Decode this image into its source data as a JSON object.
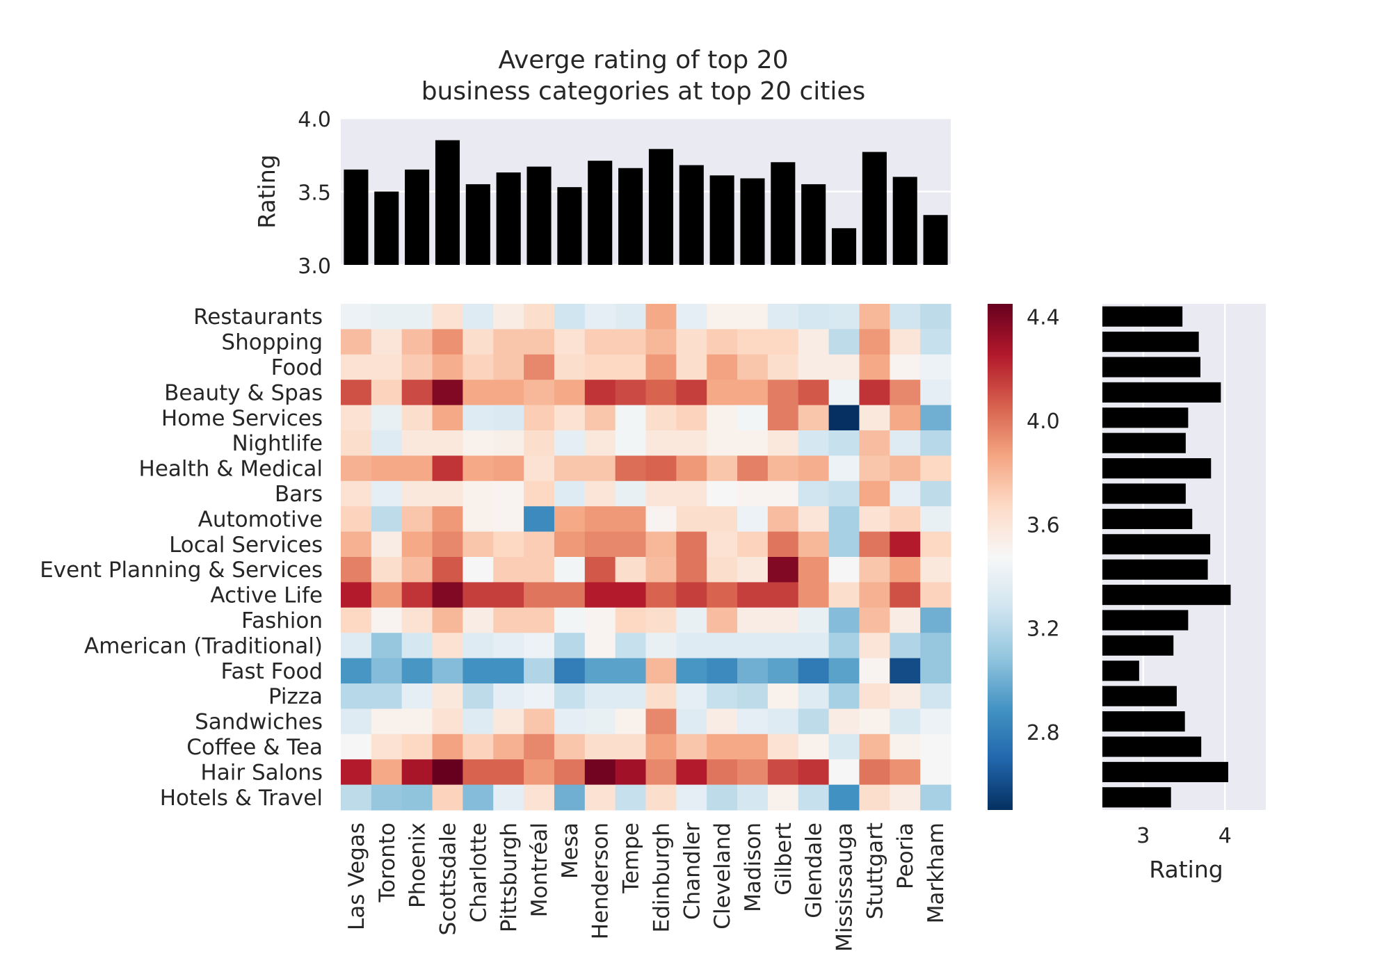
{
  "title_line1": "Averge rating of top 20",
  "title_line2": "business categories at top 20 cities",
  "chart_data": [
    {
      "type": "bar",
      "name": "top-bar",
      "categories": [
        "Las Vegas",
        "Toronto",
        "Phoenix",
        "Scottsdale",
        "Charlotte",
        "Pittsburgh",
        "Montréal",
        "Mesa",
        "Henderson",
        "Tempe",
        "Edinburgh",
        "Chandler",
        "Cleveland",
        "Madison",
        "Gilbert",
        "Glendale",
        "Mississauga",
        "Stuttgart",
        "Peoria",
        "Markham"
      ],
      "values": [
        3.65,
        3.5,
        3.65,
        3.85,
        3.55,
        3.63,
        3.67,
        3.53,
        3.71,
        3.66,
        3.79,
        3.68,
        3.61,
        3.59,
        3.7,
        3.55,
        3.25,
        3.77,
        3.6,
        3.34
      ],
      "ylabel": "Rating",
      "ylim": [
        3.0,
        4.0
      ],
      "yticks": [
        "3.0",
        "3.5",
        "4.0"
      ],
      "grid": true,
      "bar_color": "#000000",
      "background": "#eaeaf2"
    },
    {
      "type": "heatmap",
      "name": "ratings-heatmap",
      "rows": [
        "Restaurants",
        "Shopping",
        "Food",
        "Beauty & Spas",
        "Home Services",
        "Nightlife",
        "Health & Medical",
        "Bars",
        "Automotive",
        "Local Services",
        "Event Planning & Services",
        "Active Life",
        "Fashion",
        "American (Traditional)",
        "Fast Food",
        "Pizza",
        "Sandwiches",
        "Coffee & Tea",
        "Hair Salons",
        "Hotels & Travel"
      ],
      "columns": [
        "Las Vegas",
        "Toronto",
        "Phoenix",
        "Scottsdale",
        "Charlotte",
        "Pittsburgh",
        "Montréal",
        "Mesa",
        "Henderson",
        "Tempe",
        "Edinburgh",
        "Chandler",
        "Cleveland",
        "Madison",
        "Gilbert",
        "Glendale",
        "Mississauga",
        "Stuttgart",
        "Peoria",
        "Markham"
      ],
      "values": [
        [
          3.42,
          3.4,
          3.4,
          3.62,
          3.35,
          3.55,
          3.65,
          3.28,
          3.38,
          3.35,
          3.85,
          3.38,
          3.52,
          3.52,
          3.35,
          3.3,
          3.32,
          3.8,
          3.28,
          3.22
        ],
        [
          3.78,
          3.6,
          3.78,
          3.92,
          3.65,
          3.75,
          3.75,
          3.62,
          3.72,
          3.72,
          3.8,
          3.65,
          3.72,
          3.68,
          3.68,
          3.55,
          3.22,
          3.9,
          3.6,
          3.25
        ],
        [
          3.62,
          3.62,
          3.73,
          3.83,
          3.7,
          3.75,
          3.95,
          3.65,
          3.68,
          3.68,
          3.9,
          3.65,
          3.87,
          3.75,
          3.65,
          3.55,
          3.55,
          3.85,
          3.5,
          3.42
        ],
        [
          4.1,
          3.7,
          4.12,
          4.38,
          3.85,
          3.85,
          3.8,
          3.85,
          4.18,
          4.12,
          4.05,
          4.15,
          3.85,
          3.85,
          3.98,
          4.08,
          3.43,
          4.18,
          3.95,
          3.38
        ],
        [
          3.62,
          3.4,
          3.65,
          3.85,
          3.35,
          3.33,
          3.72,
          3.62,
          3.75,
          3.45,
          3.65,
          3.7,
          3.52,
          3.45,
          3.98,
          3.75,
          2.5,
          3.58,
          3.85,
          3.0
        ],
        [
          3.65,
          3.35,
          3.58,
          3.58,
          3.52,
          3.53,
          3.65,
          3.38,
          3.58,
          3.45,
          3.58,
          3.58,
          3.52,
          3.52,
          3.58,
          3.3,
          3.25,
          3.78,
          3.35,
          3.2
        ],
        [
          3.82,
          3.85,
          3.85,
          4.18,
          3.85,
          3.87,
          3.62,
          3.75,
          3.75,
          4.02,
          4.05,
          3.9,
          3.75,
          3.97,
          3.8,
          3.83,
          3.42,
          3.75,
          3.8,
          3.68
        ],
        [
          3.62,
          3.38,
          3.58,
          3.58,
          3.52,
          3.5,
          3.68,
          3.35,
          3.6,
          3.4,
          3.6,
          3.6,
          3.48,
          3.5,
          3.5,
          3.28,
          3.25,
          3.85,
          3.38,
          3.22
        ],
        [
          3.7,
          3.22,
          3.75,
          3.9,
          3.52,
          3.5,
          2.85,
          3.85,
          3.9,
          3.9,
          3.5,
          3.65,
          3.65,
          3.42,
          3.78,
          3.6,
          3.15,
          3.62,
          3.7,
          3.4
        ],
        [
          3.82,
          3.55,
          3.85,
          3.95,
          3.75,
          3.68,
          3.72,
          3.9,
          3.95,
          3.95,
          3.8,
          4.0,
          3.62,
          3.7,
          4.0,
          3.8,
          3.15,
          4.0,
          4.25,
          3.68
        ],
        [
          3.97,
          3.65,
          3.78,
          4.08,
          3.48,
          3.72,
          3.72,
          3.45,
          4.08,
          3.65,
          3.78,
          4.0,
          3.65,
          3.58,
          4.38,
          3.92,
          3.48,
          3.75,
          3.88,
          3.58
        ],
        [
          4.25,
          3.9,
          4.18,
          4.38,
          4.15,
          4.15,
          4.0,
          4.0,
          4.25,
          4.25,
          4.05,
          4.15,
          4.05,
          4.15,
          4.15,
          3.92,
          3.65,
          3.82,
          4.1,
          3.7
        ],
        [
          3.68,
          3.5,
          3.62,
          3.8,
          3.55,
          3.72,
          3.72,
          3.45,
          3.5,
          3.68,
          3.65,
          3.4,
          3.78,
          3.55,
          3.55,
          3.4,
          3.05,
          3.78,
          3.55,
          3.0
        ],
        [
          3.35,
          3.1,
          3.3,
          3.62,
          3.35,
          3.38,
          3.42,
          3.2,
          3.5,
          3.25,
          3.4,
          3.35,
          3.35,
          3.35,
          3.35,
          3.35,
          3.15,
          3.6,
          3.18,
          3.1
        ],
        [
          2.9,
          3.05,
          2.9,
          3.05,
          2.88,
          2.88,
          3.18,
          2.8,
          2.95,
          2.95,
          3.8,
          2.9,
          2.85,
          3.0,
          2.95,
          2.78,
          2.95,
          3.5,
          2.6,
          3.1
        ],
        [
          3.2,
          3.2,
          3.38,
          3.58,
          3.22,
          3.38,
          3.42,
          3.25,
          3.35,
          3.35,
          3.65,
          3.38,
          3.25,
          3.22,
          3.52,
          3.35,
          3.15,
          3.62,
          3.55,
          3.28
        ],
        [
          3.35,
          3.52,
          3.52,
          3.62,
          3.35,
          3.58,
          3.75,
          3.38,
          3.4,
          3.52,
          3.95,
          3.35,
          3.55,
          3.38,
          3.35,
          3.22,
          3.55,
          3.52,
          3.32,
          3.42
        ],
        [
          3.48,
          3.62,
          3.68,
          3.87,
          3.7,
          3.82,
          3.95,
          3.75,
          3.65,
          3.65,
          3.88,
          3.75,
          3.85,
          3.85,
          3.62,
          3.52,
          3.32,
          3.8,
          3.52,
          3.48
        ],
        [
          4.25,
          3.85,
          4.28,
          4.45,
          4.05,
          4.05,
          3.9,
          4.0,
          4.42,
          4.3,
          3.95,
          4.25,
          4.0,
          3.95,
          4.12,
          4.18,
          3.48,
          4.0,
          3.92,
          3.48
        ],
        [
          3.22,
          3.1,
          3.08,
          3.7,
          3.05,
          3.38,
          3.62,
          3.0,
          3.62,
          3.25,
          3.65,
          3.38,
          3.22,
          3.3,
          3.52,
          3.25,
          2.88,
          3.65,
          3.55,
          3.15
        ]
      ],
      "colormap": "RdBu_r",
      "vmin": 2.5,
      "vmax": 4.45
    },
    {
      "type": "colorbar",
      "name": "colorbar",
      "ticks": [
        "2.8",
        "3.2",
        "3.6",
        "4.0",
        "4.4"
      ],
      "tick_values": [
        2.8,
        3.2,
        3.6,
        4.0,
        4.4
      ],
      "vmin": 2.5,
      "vmax": 4.45
    },
    {
      "type": "bar",
      "name": "side-bar",
      "orientation": "horizontal",
      "categories": [
        "Restaurants",
        "Shopping",
        "Food",
        "Beauty & Spas",
        "Home Services",
        "Nightlife",
        "Health & Medical",
        "Bars",
        "Automotive",
        "Local Services",
        "Event Planning & Services",
        "Active Life",
        "Fashion",
        "American (Traditional)",
        "Fast Food",
        "Pizza",
        "Sandwiches",
        "Coffee & Tea",
        "Hair Salons",
        "Hotels & Travel"
      ],
      "values": [
        3.48,
        3.68,
        3.7,
        3.95,
        3.55,
        3.52,
        3.83,
        3.52,
        3.6,
        3.82,
        3.79,
        4.07,
        3.55,
        3.37,
        2.95,
        3.41,
        3.51,
        3.71,
        4.04,
        3.34
      ],
      "xlabel": "Rating",
      "xlim": [
        2.5,
        4.5
      ],
      "xticks": [
        "3",
        "4"
      ],
      "grid": true,
      "bar_color": "#000000",
      "background": "#eaeaf2"
    }
  ]
}
